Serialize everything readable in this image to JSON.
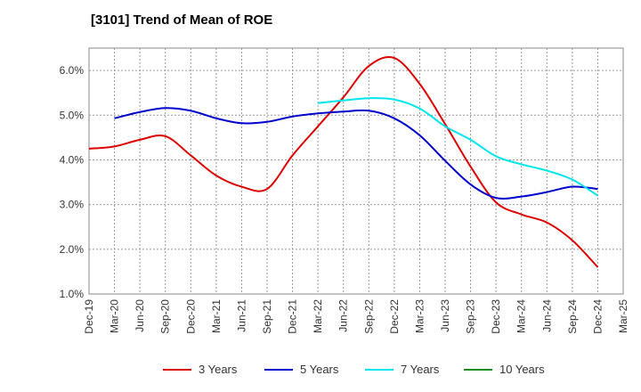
{
  "title": "[3101]  Trend of Mean of ROE",
  "chart_data": {
    "type": "line",
    "title": "[3101]  Trend of Mean of ROE",
    "xlabel": "",
    "ylabel": "",
    "categories": [
      "Dec-19",
      "Mar-20",
      "Jun-20",
      "Sep-20",
      "Dec-20",
      "Mar-21",
      "Jun-21",
      "Sep-21",
      "Dec-21",
      "Mar-22",
      "Jun-22",
      "Sep-22",
      "Dec-22",
      "Mar-23",
      "Jun-23",
      "Sep-23",
      "Dec-23",
      "Mar-24",
      "Jun-24",
      "Sep-24",
      "Dec-24",
      "Mar-25"
    ],
    "y_ticks": [
      "1.0%",
      "2.0%",
      "3.0%",
      "4.0%",
      "5.0%",
      "6.0%"
    ],
    "ylim": [
      1.0,
      6.5
    ],
    "grid": true,
    "legend_position": "bottom",
    "series": [
      {
        "name": "3 Years",
        "color": "#dd0000",
        "values": [
          4.25,
          4.3,
          4.45,
          4.53,
          4.1,
          3.65,
          3.4,
          3.35,
          4.1,
          4.75,
          5.4,
          6.1,
          6.28,
          5.7,
          4.8,
          3.85,
          3.05,
          2.78,
          2.6,
          2.2,
          1.6,
          null
        ]
      },
      {
        "name": "5 Years",
        "color": "#0000cc",
        "values": [
          null,
          4.93,
          5.07,
          5.16,
          5.1,
          4.93,
          4.82,
          4.85,
          4.97,
          5.04,
          5.08,
          5.1,
          4.93,
          4.55,
          3.98,
          3.45,
          3.15,
          3.18,
          3.28,
          3.4,
          3.35,
          null
        ]
      },
      {
        "name": "7 Years",
        "color": "#00e5ee",
        "values": [
          null,
          null,
          null,
          null,
          null,
          null,
          null,
          null,
          null,
          5.27,
          5.33,
          5.38,
          5.35,
          5.15,
          4.75,
          4.45,
          4.08,
          3.9,
          3.76,
          3.56,
          3.2,
          null
        ]
      },
      {
        "name": "10 Years",
        "color": "#228b22",
        "values": [
          null,
          null,
          null,
          null,
          null,
          null,
          null,
          null,
          null,
          null,
          null,
          null,
          null,
          null,
          null,
          null,
          null,
          null,
          null,
          null,
          null,
          null
        ]
      }
    ]
  }
}
